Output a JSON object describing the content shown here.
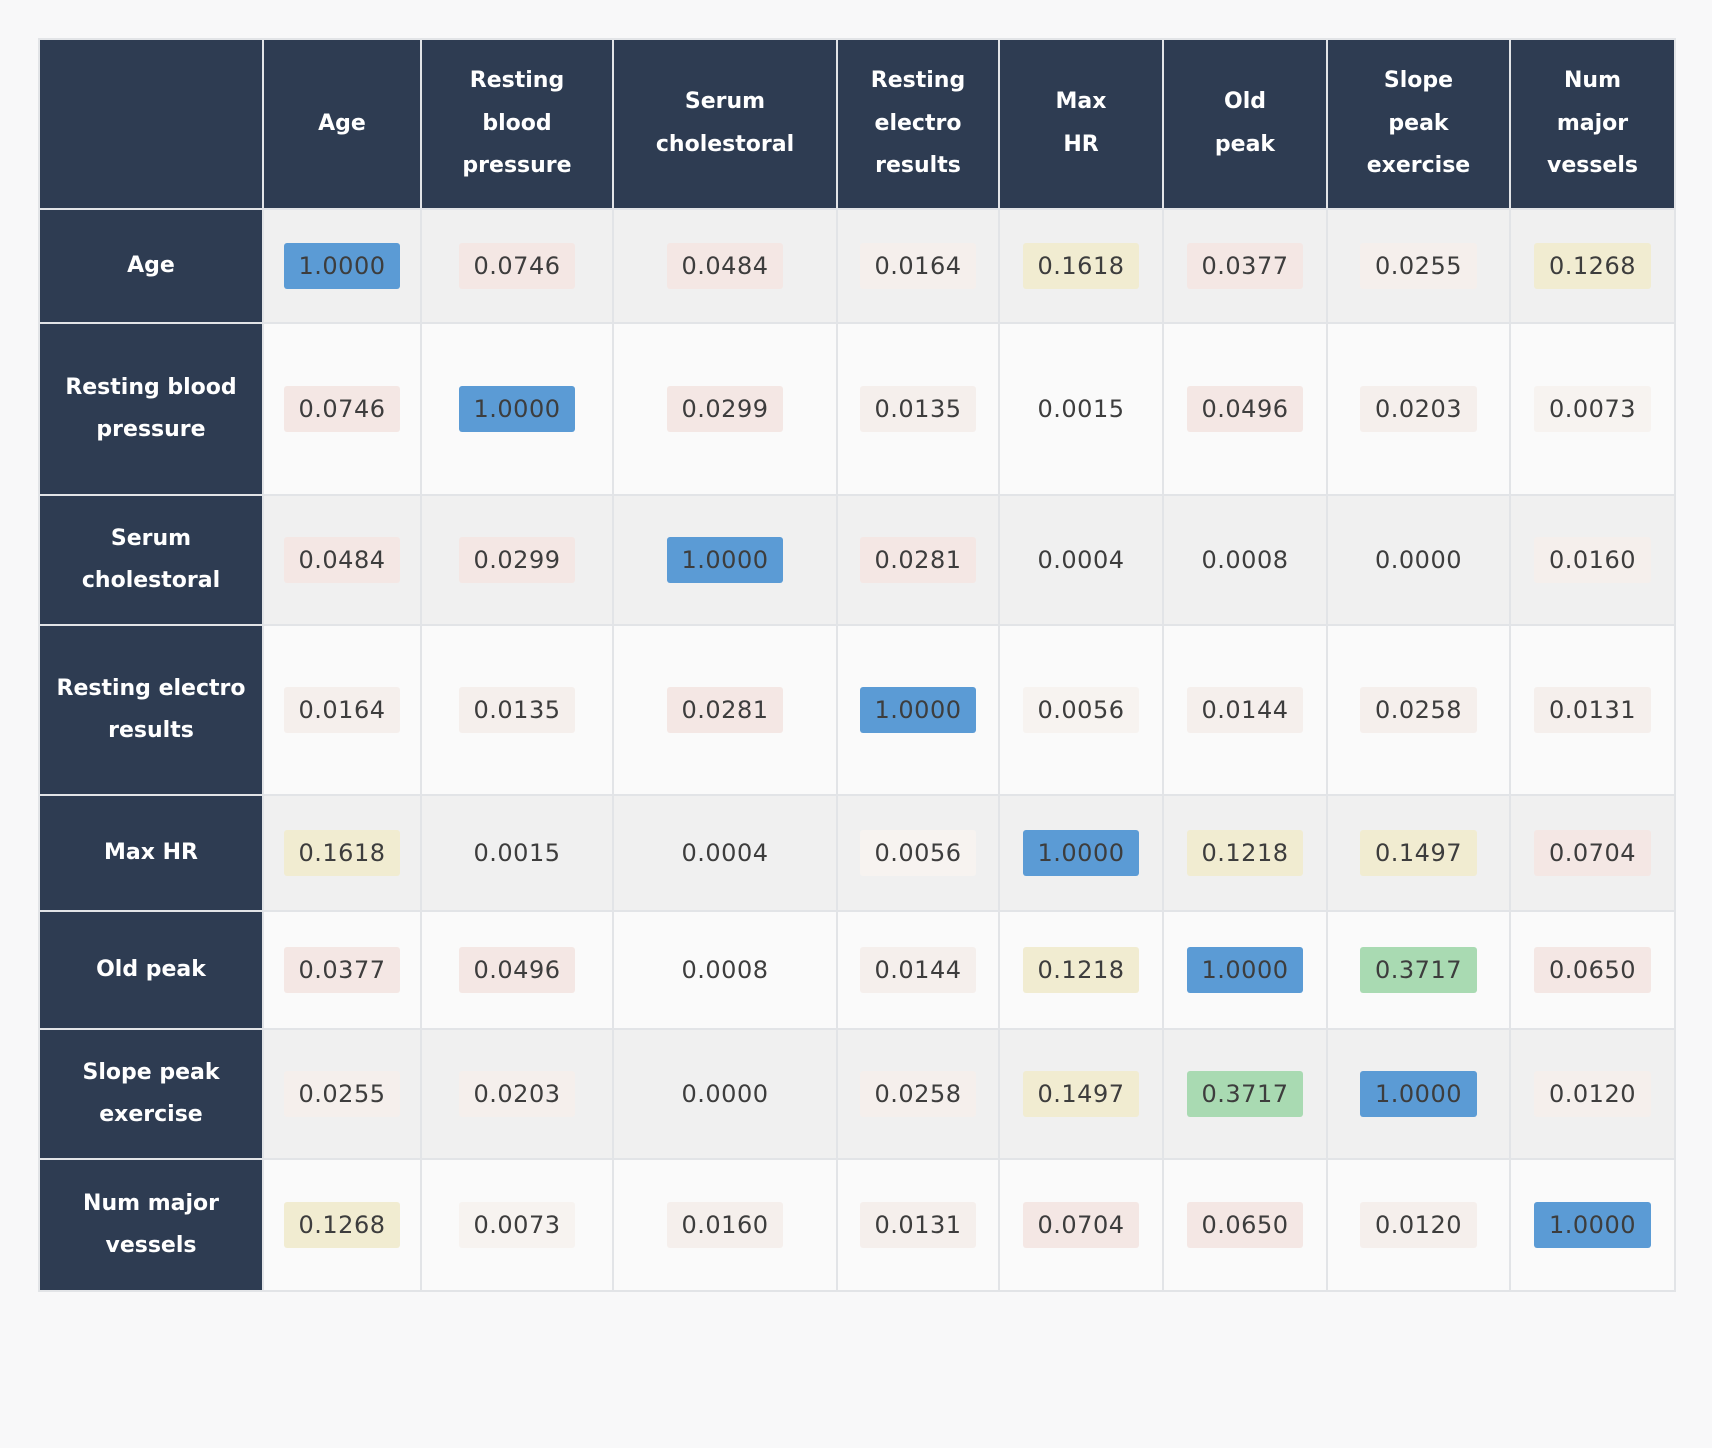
{
  "colors": {
    "header_bg": "#2e3c52",
    "header_text": "#ffffff",
    "value_text": "#3d3d3d",
    "row_stripe_a": "#f0f0f0",
    "row_stripe_b": "#fafafa",
    "page_bg": "#f8f8f9",
    "grid_line": "#e2e4e7",
    "chip": {
      "blue": "#5b9bd5",
      "green": "#a9dab2",
      "cream": "#f1ecd1",
      "pink": "#f4e7e4",
      "faint": "#f5efec",
      "ghost": "#f7f3f0",
      "none": "transparent"
    }
  },
  "matrix": {
    "corner_label": "",
    "columns": [
      "Age",
      "Resting blood pressure",
      "Serum cholestoral",
      "Resting electro results",
      "Max HR",
      "Old peak",
      "Slope peak exercise",
      "Num major vessels"
    ],
    "rows": [
      {
        "label": "Age",
        "cells": [
          {
            "v": "1.0000",
            "t": "blue"
          },
          {
            "v": "0.0746",
            "t": "pink"
          },
          {
            "v": "0.0484",
            "t": "pink"
          },
          {
            "v": "0.0164",
            "t": "faint"
          },
          {
            "v": "0.1618",
            "t": "cream"
          },
          {
            "v": "0.0377",
            "t": "pink"
          },
          {
            "v": "0.0255",
            "t": "faint"
          },
          {
            "v": "0.1268",
            "t": "cream"
          }
        ]
      },
      {
        "label": "Resting blood pressure",
        "cells": [
          {
            "v": "0.0746",
            "t": "pink"
          },
          {
            "v": "1.0000",
            "t": "blue"
          },
          {
            "v": "0.0299",
            "t": "pink"
          },
          {
            "v": "0.0135",
            "t": "faint"
          },
          {
            "v": "0.0015",
            "t": "none"
          },
          {
            "v": "0.0496",
            "t": "pink"
          },
          {
            "v": "0.0203",
            "t": "faint"
          },
          {
            "v": "0.0073",
            "t": "ghost"
          }
        ]
      },
      {
        "label": "Serum cholestoral",
        "cells": [
          {
            "v": "0.0484",
            "t": "pink"
          },
          {
            "v": "0.0299",
            "t": "pink"
          },
          {
            "v": "1.0000",
            "t": "blue"
          },
          {
            "v": "0.0281",
            "t": "pink"
          },
          {
            "v": "0.0004",
            "t": "none"
          },
          {
            "v": "0.0008",
            "t": "none"
          },
          {
            "v": "0.0000",
            "t": "none"
          },
          {
            "v": "0.0160",
            "t": "faint"
          }
        ]
      },
      {
        "label": "Resting electro results",
        "cells": [
          {
            "v": "0.0164",
            "t": "faint"
          },
          {
            "v": "0.0135",
            "t": "faint"
          },
          {
            "v": "0.0281",
            "t": "pink"
          },
          {
            "v": "1.0000",
            "t": "blue"
          },
          {
            "v": "0.0056",
            "t": "ghost"
          },
          {
            "v": "0.0144",
            "t": "faint"
          },
          {
            "v": "0.0258",
            "t": "faint"
          },
          {
            "v": "0.0131",
            "t": "faint"
          }
        ]
      },
      {
        "label": "Max HR",
        "cells": [
          {
            "v": "0.1618",
            "t": "cream"
          },
          {
            "v": "0.0015",
            "t": "none"
          },
          {
            "v": "0.0004",
            "t": "none"
          },
          {
            "v": "0.0056",
            "t": "ghost"
          },
          {
            "v": "1.0000",
            "t": "blue"
          },
          {
            "v": "0.1218",
            "t": "cream"
          },
          {
            "v": "0.1497",
            "t": "cream"
          },
          {
            "v": "0.0704",
            "t": "pink"
          }
        ]
      },
      {
        "label": "Old peak",
        "cells": [
          {
            "v": "0.0377",
            "t": "pink"
          },
          {
            "v": "0.0496",
            "t": "pink"
          },
          {
            "v": "0.0008",
            "t": "none"
          },
          {
            "v": "0.0144",
            "t": "faint"
          },
          {
            "v": "0.1218",
            "t": "cream"
          },
          {
            "v": "1.0000",
            "t": "blue"
          },
          {
            "v": "0.3717",
            "t": "green"
          },
          {
            "v": "0.0650",
            "t": "pink"
          }
        ]
      },
      {
        "label": "Slope peak exercise",
        "cells": [
          {
            "v": "0.0255",
            "t": "faint"
          },
          {
            "v": "0.0203",
            "t": "faint"
          },
          {
            "v": "0.0000",
            "t": "none"
          },
          {
            "v": "0.0258",
            "t": "faint"
          },
          {
            "v": "0.1497",
            "t": "cream"
          },
          {
            "v": "0.3717",
            "t": "green"
          },
          {
            "v": "1.0000",
            "t": "blue"
          },
          {
            "v": "0.0120",
            "t": "faint"
          }
        ]
      },
      {
        "label": "Num major vessels",
        "cells": [
          {
            "v": "0.1268",
            "t": "cream"
          },
          {
            "v": "0.0073",
            "t": "ghost"
          },
          {
            "v": "0.0160",
            "t": "faint"
          },
          {
            "v": "0.0131",
            "t": "faint"
          },
          {
            "v": "0.0704",
            "t": "pink"
          },
          {
            "v": "0.0650",
            "t": "pink"
          },
          {
            "v": "0.0120",
            "t": "faint"
          },
          {
            "v": "1.0000",
            "t": "blue"
          }
        ]
      }
    ]
  },
  "chart_data": {
    "type": "heatmap",
    "title": "",
    "categories": [
      "Age",
      "Resting blood pressure",
      "Serum cholestoral",
      "Resting electro results",
      "Max HR",
      "Old peak",
      "Slope peak exercise",
      "Num major vessels"
    ],
    "values": [
      [
        1.0,
        0.0746,
        0.0484,
        0.0164,
        0.1618,
        0.0377,
        0.0255,
        0.1268
      ],
      [
        0.0746,
        1.0,
        0.0299,
        0.0135,
        0.0015,
        0.0496,
        0.0203,
        0.0073
      ],
      [
        0.0484,
        0.0299,
        1.0,
        0.0281,
        0.0004,
        0.0008,
        0.0,
        0.016
      ],
      [
        0.0164,
        0.0135,
        0.0281,
        1.0,
        0.0056,
        0.0144,
        0.0258,
        0.0131
      ],
      [
        0.1618,
        0.0015,
        0.0004,
        0.0056,
        1.0,
        0.1218,
        0.1497,
        0.0704
      ],
      [
        0.0377,
        0.0496,
        0.0008,
        0.0144,
        0.1218,
        1.0,
        0.3717,
        0.065
      ],
      [
        0.0255,
        0.0203,
        0.0,
        0.0258,
        0.1497,
        0.3717,
        1.0,
        0.012
      ],
      [
        0.1268,
        0.0073,
        0.016,
        0.0131,
        0.0704,
        0.065,
        0.012,
        1.0
      ]
    ],
    "value_range": [
      0,
      1
    ],
    "legend": "none",
    "grid": true
  }
}
